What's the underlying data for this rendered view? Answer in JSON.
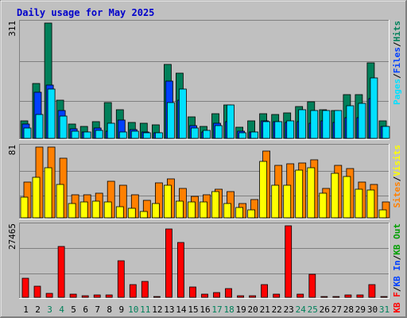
{
  "title": "Daily usage for May 2025",
  "colors": {
    "background": "#c0c0c0",
    "title": "#0000cc",
    "hits": "#00805a",
    "files": "#0040ff",
    "pages": "#00e0ff",
    "visits": "#ffff00",
    "sites": "#ff8000",
    "kbin": "#ff0000",
    "kbout": "#00a000",
    "weekend": "#00805a",
    "weekday": "#000000"
  },
  "chart_data": [
    {
      "type": "bar",
      "panel": "top",
      "ymax_label": "311",
      "ylim": [
        0,
        311
      ],
      "legend": [
        {
          "text": "Pages",
          "color": "#00e0ff"
        },
        {
          "text": "/",
          "color": "#000000"
        },
        {
          "text": "Files",
          "color": "#0040ff"
        },
        {
          "text": "/",
          "color": "#000000"
        },
        {
          "text": "Hits",
          "color": "#00805a"
        }
      ],
      "categories": [
        "1",
        "2",
        "3",
        "4",
        "5",
        "6",
        "7",
        "8",
        "9",
        "10",
        "11",
        "12",
        "13",
        "14",
        "15",
        "16",
        "17",
        "18",
        "19",
        "20",
        "21",
        "22",
        "23",
        "24",
        "25",
        "26",
        "27",
        "28",
        "29",
        "30",
        "31"
      ],
      "series": [
        {
          "name": "Hits",
          "values": [
            48,
            147,
            311,
            104,
            39,
            33,
            44,
            96,
            78,
            42,
            40,
            36,
            200,
            175,
            58,
            32,
            66,
            90,
            30,
            47,
            66,
            64,
            68,
            86,
            98,
            78,
            74,
            118,
            118,
            204,
            48
          ]
        },
        {
          "name": "Files",
          "values": [
            38,
            124,
            144,
            76,
            25,
            18,
            28,
            20,
            50,
            23,
            18,
            16,
            154,
            103,
            34,
            18,
            40,
            46,
            20,
            18,
            48,
            44,
            43,
            46,
            41,
            48,
            43,
            56,
            56,
            108,
            33
          ]
        },
        {
          "name": "Pages",
          "values": [
            27,
            64,
            132,
            60,
            20,
            18,
            22,
            40,
            18,
            19,
            16,
            15,
            96,
            134,
            28,
            22,
            35,
            90,
            14,
            17,
            44,
            44,
            48,
            78,
            74,
            74,
            74,
            88,
            94,
            162,
            33
          ]
        }
      ]
    },
    {
      "type": "bar",
      "panel": "middle",
      "ymax_label": "81",
      "ylim": [
        0,
        81
      ],
      "legend": [
        {
          "text": "Sites",
          "color": "#ff8000"
        },
        {
          "text": "/",
          "color": "#000000"
        },
        {
          "text": "Visits",
          "color": "#ffff00"
        }
      ],
      "categories": [
        "1",
        "2",
        "3",
        "4",
        "5",
        "6",
        "7",
        "8",
        "9",
        "10",
        "11",
        "12",
        "13",
        "14",
        "15",
        "16",
        "17",
        "18",
        "19",
        "20",
        "21",
        "22",
        "23",
        "24",
        "25",
        "26",
        "27",
        "28",
        "29",
        "30",
        "31"
      ],
      "series": [
        {
          "name": "Sites",
          "values": [
            41,
            81,
            81,
            68,
            26,
            26,
            28,
            42,
            37,
            26,
            20,
            40,
            45,
            34,
            25,
            26,
            33,
            30,
            16,
            21,
            76,
            60,
            62,
            63,
            66,
            34,
            60,
            56,
            41,
            38,
            18
          ]
        },
        {
          "name": "Visits",
          "values": [
            24,
            46,
            57,
            38,
            16,
            18,
            19,
            18,
            13,
            11,
            7,
            16,
            37,
            19,
            18,
            18,
            30,
            16,
            12,
            9,
            65,
            37,
            37,
            55,
            57,
            28,
            51,
            47,
            33,
            32,
            9
          ]
        }
      ]
    },
    {
      "type": "bar",
      "panel": "bottom",
      "ymax_label": "27465",
      "ylim": [
        0,
        27465
      ],
      "legend": [
        {
          "text": "KB F",
          "color": "#ff0000"
        },
        {
          "text": "/",
          "color": "#000000"
        },
        {
          "text": "KB In",
          "color": "#0040ff"
        },
        {
          "text": "/",
          "color": "#000000"
        },
        {
          "text": "KB Out",
          "color": "#00a000"
        }
      ],
      "categories": [
        "1",
        "2",
        "3",
        "4",
        "5",
        "6",
        "7",
        "8",
        "9",
        "10",
        "11",
        "12",
        "13",
        "14",
        "15",
        "16",
        "17",
        "18",
        "19",
        "20",
        "21",
        "22",
        "23",
        "24",
        "25",
        "26",
        "27",
        "28",
        "29",
        "30",
        "31"
      ],
      "series": [
        {
          "name": "KB F",
          "values": [
            7300,
            4200,
            1400,
            19500,
            1100,
            600,
            900,
            900,
            14000,
            5000,
            6100,
            300,
            26200,
            21000,
            3900,
            1300,
            1800,
            3500,
            500,
            600,
            5000,
            1100,
            27465,
            1100,
            8900,
            400,
            400,
            900,
            900,
            4800,
            300
          ]
        }
      ]
    }
  ],
  "weekend_days": [
    "3",
    "4",
    "10",
    "11",
    "17",
    "18",
    "24",
    "25",
    "31"
  ]
}
